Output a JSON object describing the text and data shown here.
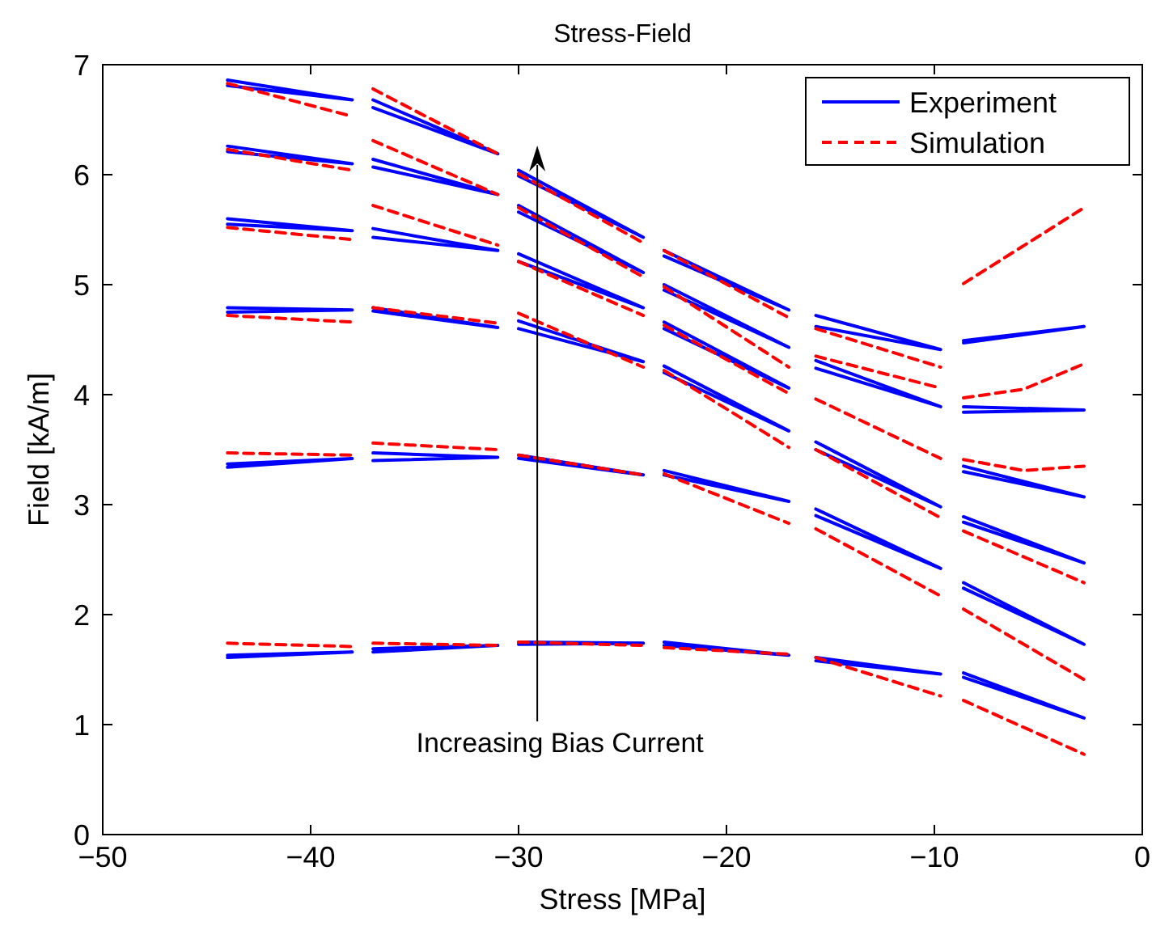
{
  "chart_data": {
    "type": "line",
    "title": "Stress-Field",
    "xlabel": "Stress [MPa]",
    "ylabel": "Field [kA/m]",
    "xlim": [
      -50,
      0
    ],
    "xticks": [
      -50,
      -40,
      -30,
      -20,
      -10,
      0
    ],
    "ylim": [
      0,
      7
    ],
    "yticks": [
      0,
      1,
      2,
      3,
      4,
      5,
      6,
      7
    ],
    "grid": false,
    "legend": "top right",
    "annotations": [
      "Increasing Bias Current"
    ],
    "series": [
      {
        "name": "Experiment",
        "color": "#0000ff",
        "line_style": "solid",
        "x": [
          -44,
          -38,
          -44,
          null,
          -44,
          -38,
          -44,
          null,
          -44,
          -38,
          -44,
          null,
          -44,
          -38,
          -44,
          null,
          -44,
          -38,
          -44,
          null,
          -44,
          -38,
          -44,
          null,
          -37,
          -31,
          -37,
          null,
          -37,
          -31,
          -37,
          null,
          -37,
          -31,
          -37,
          null,
          -37,
          -31,
          -37,
          null,
          -37,
          -31,
          -37,
          null,
          -37,
          -31,
          -37,
          null,
          -30,
          -24,
          -30,
          null,
          -30,
          -24,
          -30,
          null,
          -30,
          -24,
          -30,
          null,
          -30,
          -24,
          -30,
          null,
          -30,
          -24,
          -30,
          null,
          -30,
          -24,
          -30,
          null,
          -23,
          -17,
          -23,
          null,
          -23,
          -17,
          -23,
          null,
          -23,
          -17,
          -23,
          null,
          -23,
          -17,
          -23,
          null,
          -23,
          -17,
          -23,
          null,
          -23,
          -17,
          -23,
          null,
          -15.7,
          -9.7,
          -15.7,
          null,
          -15.7,
          -9.7,
          -15.7,
          null,
          -15.7,
          -9.7,
          -15.7,
          null,
          -15.7,
          -9.7,
          -15.7,
          null,
          -15.7,
          -9.7,
          -15.7,
          null,
          -8.6,
          -2.8,
          -8.6,
          null,
          -8.6,
          -2.8,
          -8.6,
          null,
          -8.6,
          -2.8,
          -8.6,
          null,
          -8.6,
          -2.8,
          -8.6,
          null,
          -8.6,
          -2.8,
          -8.6,
          null,
          -8.6,
          -2.8,
          -8.6
        ],
        "values": [
          6.86,
          6.68,
          6.81,
          null,
          6.26,
          6.1,
          6.21,
          null,
          5.6,
          5.49,
          5.55,
          null,
          4.79,
          4.77,
          4.75,
          null,
          3.37,
          3.42,
          3.34,
          null,
          1.63,
          1.66,
          1.61,
          null,
          6.68,
          6.19,
          6.61,
          null,
          6.14,
          5.82,
          6.07,
          null,
          5.51,
          5.31,
          5.43,
          null,
          4.79,
          4.61,
          4.76,
          null,
          3.47,
          3.43,
          3.4,
          null,
          1.69,
          1.72,
          1.66,
          null,
          6.04,
          5.43,
          5.99,
          null,
          5.72,
          5.11,
          5.66,
          null,
          5.28,
          4.79,
          5.21,
          null,
          4.67,
          4.3,
          4.6,
          null,
          3.45,
          3.27,
          3.42,
          null,
          1.75,
          1.74,
          1.73,
          null,
          5.31,
          4.77,
          5.26,
          null,
          5.0,
          4.43,
          4.95,
          null,
          4.66,
          4.06,
          4.6,
          null,
          4.26,
          3.67,
          4.2,
          null,
          3.31,
          3.03,
          3.27,
          null,
          1.75,
          1.63,
          1.72,
          null,
          4.72,
          4.41,
          4.62,
          null,
          4.31,
          3.89,
          4.24,
          null,
          3.57,
          2.98,
          3.5,
          null,
          2.96,
          2.42,
          2.9,
          null,
          1.61,
          1.46,
          1.58,
          null,
          4.49,
          4.62,
          4.47,
          null,
          3.89,
          3.86,
          3.84,
          null,
          3.35,
          3.07,
          3.3,
          null,
          2.89,
          2.47,
          2.84,
          null,
          2.29,
          1.73,
          2.24,
          null,
          1.47,
          1.06,
          1.43
        ]
      },
      {
        "name": "Simulation",
        "color": "#ff0000",
        "line_style": "dashed",
        "x": [
          -44,
          -38
        ],
        "values": [
          6.83,
          6.53
        ]
      },
      {
        "color": "#ff0000",
        "line_style": "dashed",
        "x": [
          -44,
          -38
        ],
        "values": [
          6.23,
          6.04
        ]
      },
      {
        "color": "#ff0000",
        "line_style": "dashed",
        "x": [
          -44,
          -38
        ],
        "values": [
          5.52,
          5.41
        ]
      },
      {
        "color": "#ff0000",
        "line_style": "dashed",
        "x": [
          -44,
          -38
        ],
        "values": [
          4.72,
          4.66
        ]
      },
      {
        "color": "#ff0000",
        "line_style": "dashed",
        "x": [
          -44,
          -38
        ],
        "values": [
          3.47,
          3.45
        ]
      },
      {
        "color": "#ff0000",
        "line_style": "dashed",
        "x": [
          -44,
          -38
        ],
        "values": [
          1.74,
          1.71
        ]
      },
      {
        "color": "#ff0000",
        "line_style": "dashed",
        "x": [
          -37,
          -31
        ],
        "values": [
          6.78,
          6.19
        ]
      },
      {
        "color": "#ff0000",
        "line_style": "dashed",
        "x": [
          -37,
          -31
        ],
        "values": [
          6.31,
          5.82
        ]
      },
      {
        "color": "#ff0000",
        "line_style": "dashed",
        "x": [
          -37,
          -31
        ],
        "values": [
          5.72,
          5.36
        ]
      },
      {
        "color": "#ff0000",
        "line_style": "dashed",
        "x": [
          -37,
          -31
        ],
        "values": [
          4.79,
          4.65
        ]
      },
      {
        "color": "#ff0000",
        "line_style": "dashed",
        "x": [
          -37,
          -31
        ],
        "values": [
          3.56,
          3.5
        ]
      },
      {
        "color": "#ff0000",
        "line_style": "dashed",
        "x": [
          -37,
          -31
        ],
        "values": [
          1.74,
          1.72
        ]
      },
      {
        "color": "#ff0000",
        "line_style": "dashed",
        "x": [
          -30,
          -24
        ],
        "values": [
          6.01,
          5.38
        ]
      },
      {
        "color": "#ff0000",
        "line_style": "dashed",
        "x": [
          -30,
          -24
        ],
        "values": [
          5.7,
          5.07
        ]
      },
      {
        "color": "#ff0000",
        "line_style": "dashed",
        "x": [
          -30,
          -24
        ],
        "values": [
          5.21,
          4.72
        ]
      },
      {
        "color": "#ff0000",
        "line_style": "dashed",
        "x": [
          -30,
          -24
        ],
        "values": [
          4.74,
          4.25
        ]
      },
      {
        "color": "#ff0000",
        "line_style": "dashed",
        "x": [
          -30,
          -24
        ],
        "values": [
          3.45,
          3.27
        ]
      },
      {
        "color": "#ff0000",
        "line_style": "dashed",
        "x": [
          -30,
          -24
        ],
        "values": [
          1.75,
          1.72
        ]
      },
      {
        "color": "#ff0000",
        "line_style": "dashed",
        "x": [
          -23,
          -17
        ],
        "values": [
          5.31,
          4.7
        ]
      },
      {
        "color": "#ff0000",
        "line_style": "dashed",
        "x": [
          -23,
          -17
        ],
        "values": [
          4.98,
          4.25
        ]
      },
      {
        "color": "#ff0000",
        "line_style": "dashed",
        "x": [
          -23,
          -17
        ],
        "values": [
          4.63,
          4.01
        ]
      },
      {
        "color": "#ff0000",
        "line_style": "dashed",
        "x": [
          -23,
          -17
        ],
        "values": [
          4.22,
          3.52
        ]
      },
      {
        "color": "#ff0000",
        "line_style": "dashed",
        "x": [
          -23,
          -17
        ],
        "values": [
          3.28,
          2.83
        ]
      },
      {
        "color": "#ff0000",
        "line_style": "dashed",
        "x": [
          -23,
          -17
        ],
        "values": [
          1.7,
          1.64
        ]
      },
      {
        "color": "#ff0000",
        "line_style": "dashed",
        "x": [
          -15.7,
          -9.7
        ],
        "values": [
          4.6,
          4.25
        ]
      },
      {
        "color": "#ff0000",
        "line_style": "dashed",
        "x": [
          -15.7,
          -9.7
        ],
        "values": [
          4.35,
          4.06
        ]
      },
      {
        "color": "#ff0000",
        "line_style": "dashed",
        "x": [
          -15.7,
          -9.7
        ],
        "values": [
          3.96,
          3.42
        ]
      },
      {
        "color": "#ff0000",
        "line_style": "dashed",
        "x": [
          -15.7,
          -9.7
        ],
        "values": [
          3.5,
          2.88
        ]
      },
      {
        "color": "#ff0000",
        "line_style": "dashed",
        "x": [
          -15.7,
          -9.7
        ],
        "values": [
          2.78,
          2.17
        ]
      },
      {
        "color": "#ff0000",
        "line_style": "dashed",
        "x": [
          -15.7,
          -9.7
        ],
        "values": [
          1.61,
          1.26
        ]
      },
      {
        "color": "#ff0000",
        "line_style": "dashed",
        "x": [
          -8.6,
          -2.8
        ],
        "values": [
          5.01,
          5.7
        ]
      },
      {
        "color": "#ff0000",
        "line_style": "dashed",
        "x": [
          -8.6,
          -5.7,
          -2.8
        ],
        "values": [
          3.97,
          4.05,
          4.28
        ]
      },
      {
        "color": "#ff0000",
        "line_style": "dashed",
        "x": [
          -8.6,
          -5.7,
          -2.8
        ],
        "values": [
          3.41,
          3.31,
          3.35
        ]
      },
      {
        "color": "#ff0000",
        "line_style": "dashed",
        "x": [
          -8.6,
          -2.8
        ],
        "values": [
          2.76,
          2.29
        ]
      },
      {
        "color": "#ff0000",
        "line_style": "dashed",
        "x": [
          -8.6,
          -2.8
        ],
        "values": [
          2.05,
          1.41
        ]
      },
      {
        "color": "#ff0000",
        "line_style": "dashed",
        "x": [
          -8.6,
          -2.8
        ],
        "values": [
          1.22,
          0.73
        ]
      }
    ]
  }
}
